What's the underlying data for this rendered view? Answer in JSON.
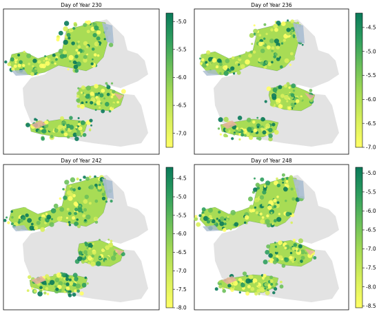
{
  "panels": [
    {
      "title": "Day of Year 230",
      "colorbar": {
        "ticks": [
          "-5.0",
          "-5.5",
          "-6.0",
          "-6.5",
          "-7.0"
        ],
        "min": -7.25,
        "max": -4.85,
        "tick_values": [
          -5.0,
          -5.5,
          -6.0,
          -6.5,
          -7.0
        ]
      }
    },
    {
      "title": "Day of Year 236",
      "colorbar": {
        "ticks": [
          "-4.5",
          "-5.0",
          "-5.5",
          "-6.0",
          "-6.5",
          "-7.0"
        ],
        "min": -7.0,
        "max": -4.2,
        "tick_values": [
          -4.5,
          -5.0,
          -5.5,
          -6.0,
          -6.5,
          -7.0
        ]
      }
    },
    {
      "title": "Day of Year 242",
      "colorbar": {
        "ticks": [
          "-4.5",
          "-5.0",
          "-5.5",
          "-6.0",
          "-6.5",
          "-7.0",
          "-7.5",
          "-8.0"
        ],
        "min": -8.0,
        "max": -4.2,
        "tick_values": [
          -4.5,
          -5.0,
          -5.5,
          -6.0,
          -6.5,
          -7.0,
          -7.5,
          -8.0
        ]
      }
    },
    {
      "title": "Day of Year 248",
      "colorbar": {
        "ticks": [
          "-5.0",
          "-5.5",
          "-6.0",
          "-6.5",
          "-7.0",
          "-7.5",
          "-8.0",
          "-8.5"
        ],
        "min": -8.55,
        "max": -4.85,
        "tick_values": [
          -5.0,
          -5.5,
          -6.0,
          -6.5,
          -7.0,
          -7.5,
          -8.0,
          -8.5
        ]
      }
    }
  ],
  "colors": {
    "colormap": [
      "#ffff66",
      "#d9f05c",
      "#a8dc55",
      "#6cc05a",
      "#2f9e5e",
      "#0a7a5a"
    ],
    "background_region": "#e3e3e3",
    "water": "#a9bcd0",
    "urban": "#e8b0a0"
  }
}
